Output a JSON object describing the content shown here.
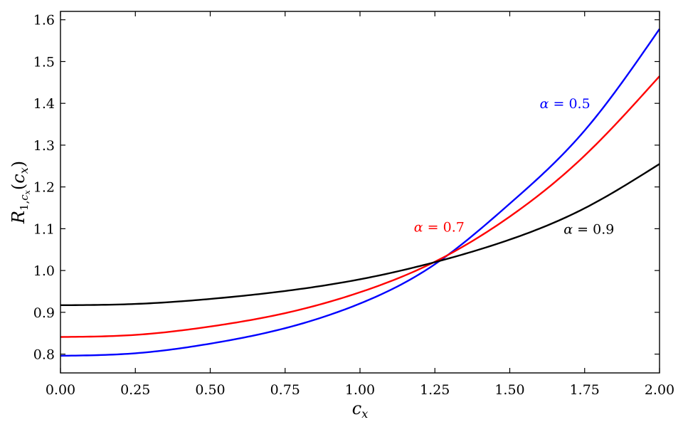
{
  "chart_data": {
    "type": "line",
    "xlim": [
      0.0,
      2.0
    ],
    "ylim": [
      0.755,
      1.62
    ],
    "grid": false,
    "xticks": [
      0.0,
      0.25,
      0.5,
      0.75,
      1.0,
      1.25,
      1.5,
      1.75,
      2.0
    ],
    "xtick_labels": [
      "0.00",
      "0.25",
      "0.50",
      "0.75",
      "1.00",
      "1.25",
      "1.50",
      "1.75",
      "2.00"
    ],
    "yticks": [
      0.8,
      0.9,
      1.0,
      1.1,
      1.2,
      1.3,
      1.4,
      1.5,
      1.6
    ],
    "ytick_labels": [
      "0.8",
      "0.9",
      "1.0",
      "1.1",
      "1.2",
      "1.3",
      "1.4",
      "1.5",
      "1.6"
    ],
    "xlabel": {
      "base": "c",
      "sub": "x"
    },
    "ylabel": {
      "base": "R",
      "sub1": "1,",
      "sub_c": "c",
      "sub_x": "x",
      "arg_open": "(",
      "arg_c": "c",
      "arg_x": "x",
      "arg_close": ")"
    },
    "x": [
      0.0,
      0.25,
      0.5,
      0.75,
      1.0,
      1.25,
      1.5,
      1.75,
      2.0
    ],
    "series": [
      {
        "alpha": "0.5",
        "color": "#0000ff",
        "values": [
          0.796,
          0.802,
          0.825,
          0.862,
          0.921,
          1.015,
          1.16,
          1.335,
          1.578
        ]
      },
      {
        "alpha": "0.7",
        "color": "#ff0000",
        "values": [
          0.841,
          0.846,
          0.866,
          0.898,
          0.948,
          1.021,
          1.129,
          1.275,
          1.465
        ]
      },
      {
        "alpha": "0.9",
        "color": "#000000",
        "values": [
          0.917,
          0.92,
          0.932,
          0.951,
          0.979,
          1.02,
          1.074,
          1.149,
          1.255
        ]
      }
    ],
    "annotations": [
      {
        "greek": "α",
        "eq": " = ",
        "value": "0.5",
        "color": "#0000ff",
        "at": [
          1.6,
          1.4
        ]
      },
      {
        "greek": "α",
        "eq": " = ",
        "value": "0.7",
        "color": "#ff0000",
        "at": [
          1.18,
          1.105
        ]
      },
      {
        "greek": "α",
        "eq": " = ",
        "value": "0.9",
        "color": "#000000",
        "at": [
          1.68,
          1.1
        ]
      }
    ]
  }
}
